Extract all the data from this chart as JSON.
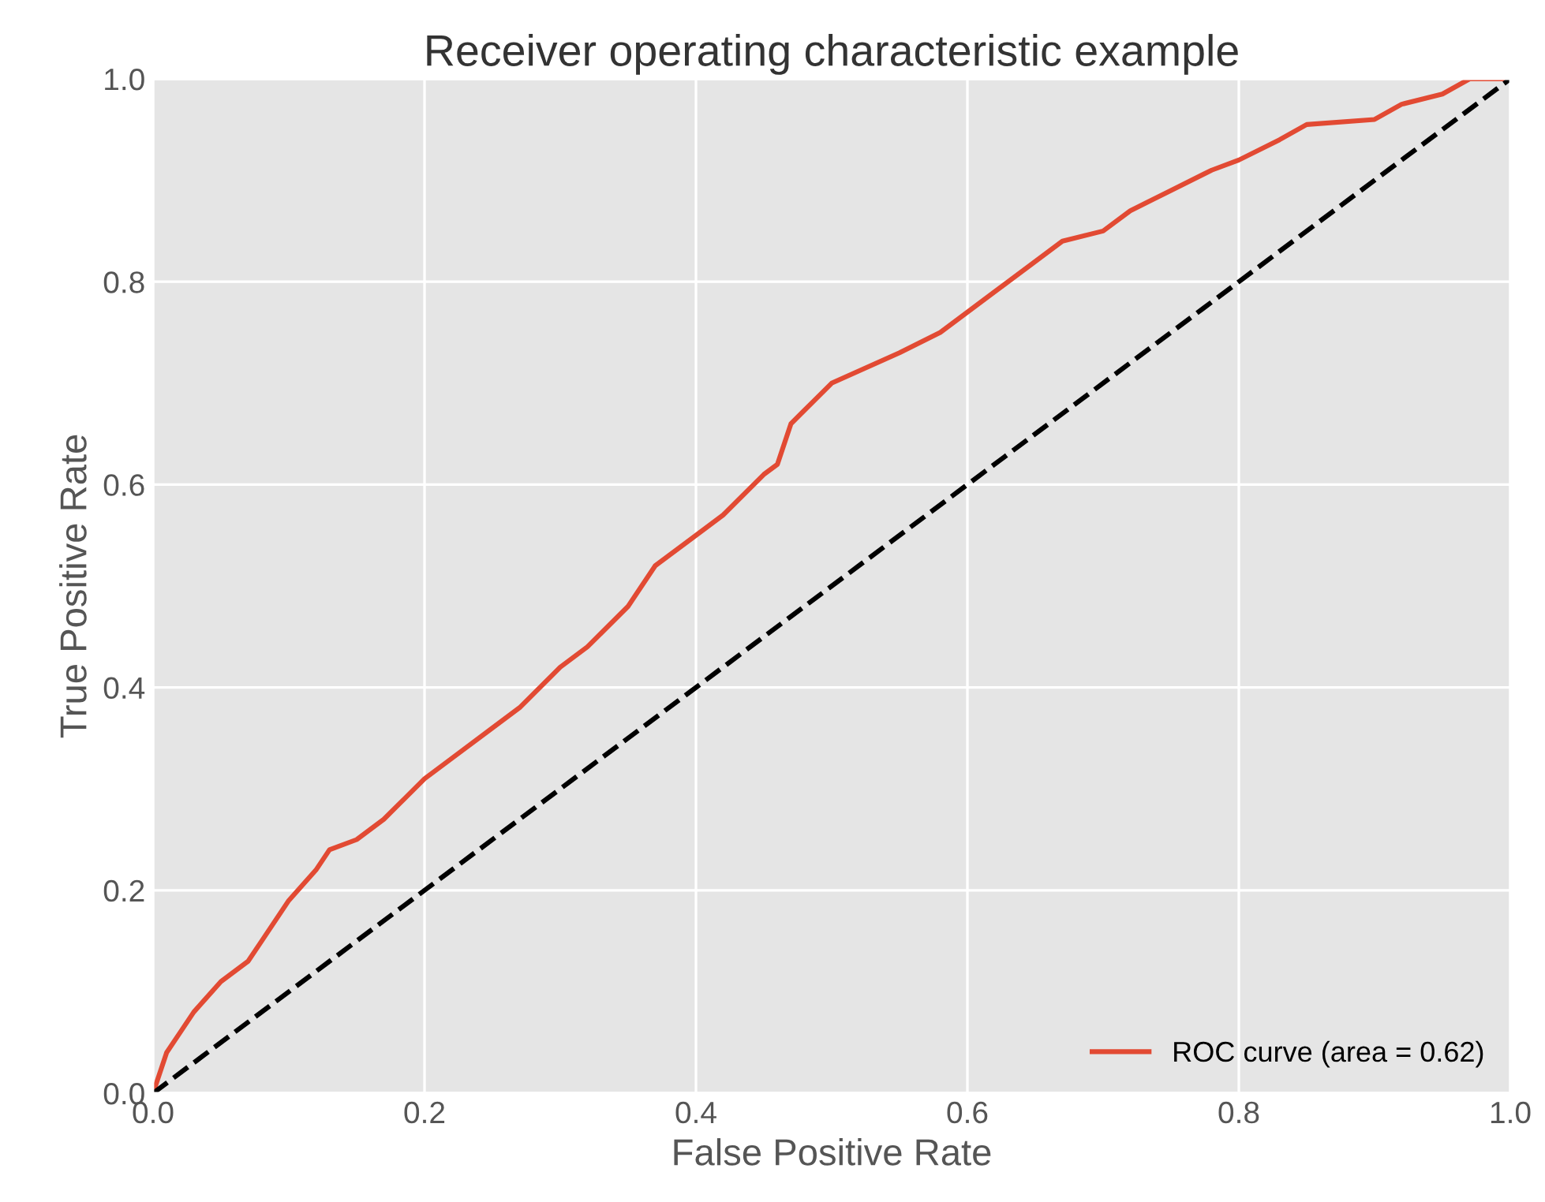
{
  "chart_data": {
    "type": "line",
    "title": "Receiver operating characteristic example",
    "xlabel": "False Positive Rate",
    "ylabel": "True Positive Rate",
    "series": [
      {
        "name": "ROC curve (area = 0.62)",
        "color": "#e24a33",
        "line_style": "solid",
        "x": [
          0,
          0.01,
          0.02,
          0.03,
          0.05,
          0.07,
          0.08,
          0.1,
          0.12,
          0.13,
          0.15,
          0.17,
          0.2,
          0.22,
          0.25,
          0.27,
          0.3,
          0.32,
          0.35,
          0.37,
          0.4,
          0.42,
          0.45,
          0.46,
          0.47,
          0.5,
          0.55,
          0.58,
          0.6,
          0.62,
          0.65,
          0.67,
          0.7,
          0.72,
          0.75,
          0.78,
          0.8,
          0.83,
          0.85,
          0.9,
          0.92,
          0.95,
          0.97,
          1.0
        ],
        "values": [
          0,
          0.04,
          0.06,
          0.08,
          0.11,
          0.13,
          0.15,
          0.19,
          0.22,
          0.24,
          0.25,
          0.27,
          0.31,
          0.33,
          0.36,
          0.38,
          0.42,
          0.44,
          0.48,
          0.52,
          0.55,
          0.57,
          0.61,
          0.62,
          0.66,
          0.7,
          0.73,
          0.75,
          0.77,
          0.79,
          0.82,
          0.84,
          0.85,
          0.87,
          0.89,
          0.91,
          0.92,
          0.94,
          0.955,
          0.96,
          0.975,
          0.985,
          1.0,
          1.0
        ]
      },
      {
        "color": "#000000",
        "line_style": "dashed",
        "x": [
          0,
          1
        ],
        "values": [
          0,
          1
        ]
      }
    ],
    "xlim": [
      0,
      1
    ],
    "ylim": [
      0,
      1
    ],
    "xticks": [
      {
        "value": 0,
        "label": "0.0"
      },
      0.2,
      0.4,
      0.6,
      0.8,
      {
        "value": 1,
        "label": "1.0"
      }
    ],
    "yticks": [
      {
        "value": 0,
        "label": "0.0"
      },
      0.2,
      0.4,
      0.6,
      0.8,
      {
        "value": 1,
        "label": "1.0"
      }
    ],
    "grid": true,
    "legend": "lower right"
  }
}
